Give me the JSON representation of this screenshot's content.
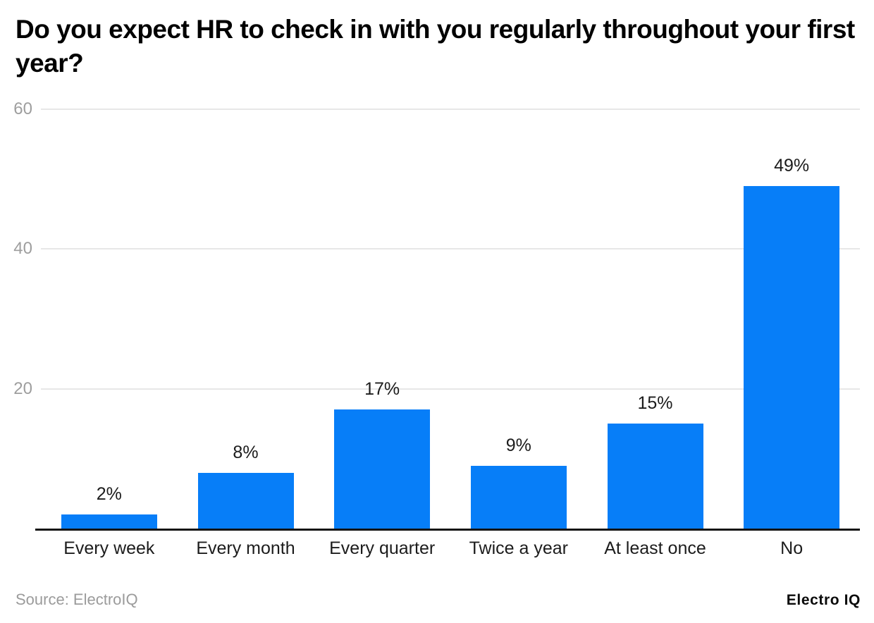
{
  "title": "Do you expect HR to check in with you regularly throughout your first year?",
  "chart_data": {
    "type": "bar",
    "title": "Do you expect HR to check in with you regularly throughout your first year?",
    "categories": [
      "Every week",
      "Every month",
      "Every quarter",
      "Twice a year",
      "At least once",
      "No"
    ],
    "values": [
      2,
      8,
      17,
      9,
      15,
      49
    ],
    "value_labels": [
      "2%",
      "8%",
      "17%",
      "9%",
      "15%",
      "49%"
    ],
    "xlabel": "",
    "ylabel": "",
    "ylim": [
      0,
      60
    ],
    "yticks": [
      20,
      40,
      60
    ],
    "grid": "horizontal-only",
    "legend": "none",
    "bar_color": "#077ef8"
  },
  "colors": {
    "bar": "#077ef8",
    "gridline": "#e7e7e7",
    "tick_label": "#9e9e9e",
    "label_text": "#1c1c1c",
    "axis_line": "#141414",
    "title_text": "#000000",
    "source_text": "#9b9b9b"
  },
  "footer": {
    "source": "Source: ElectroIQ",
    "logo": "Electro IQ"
  }
}
